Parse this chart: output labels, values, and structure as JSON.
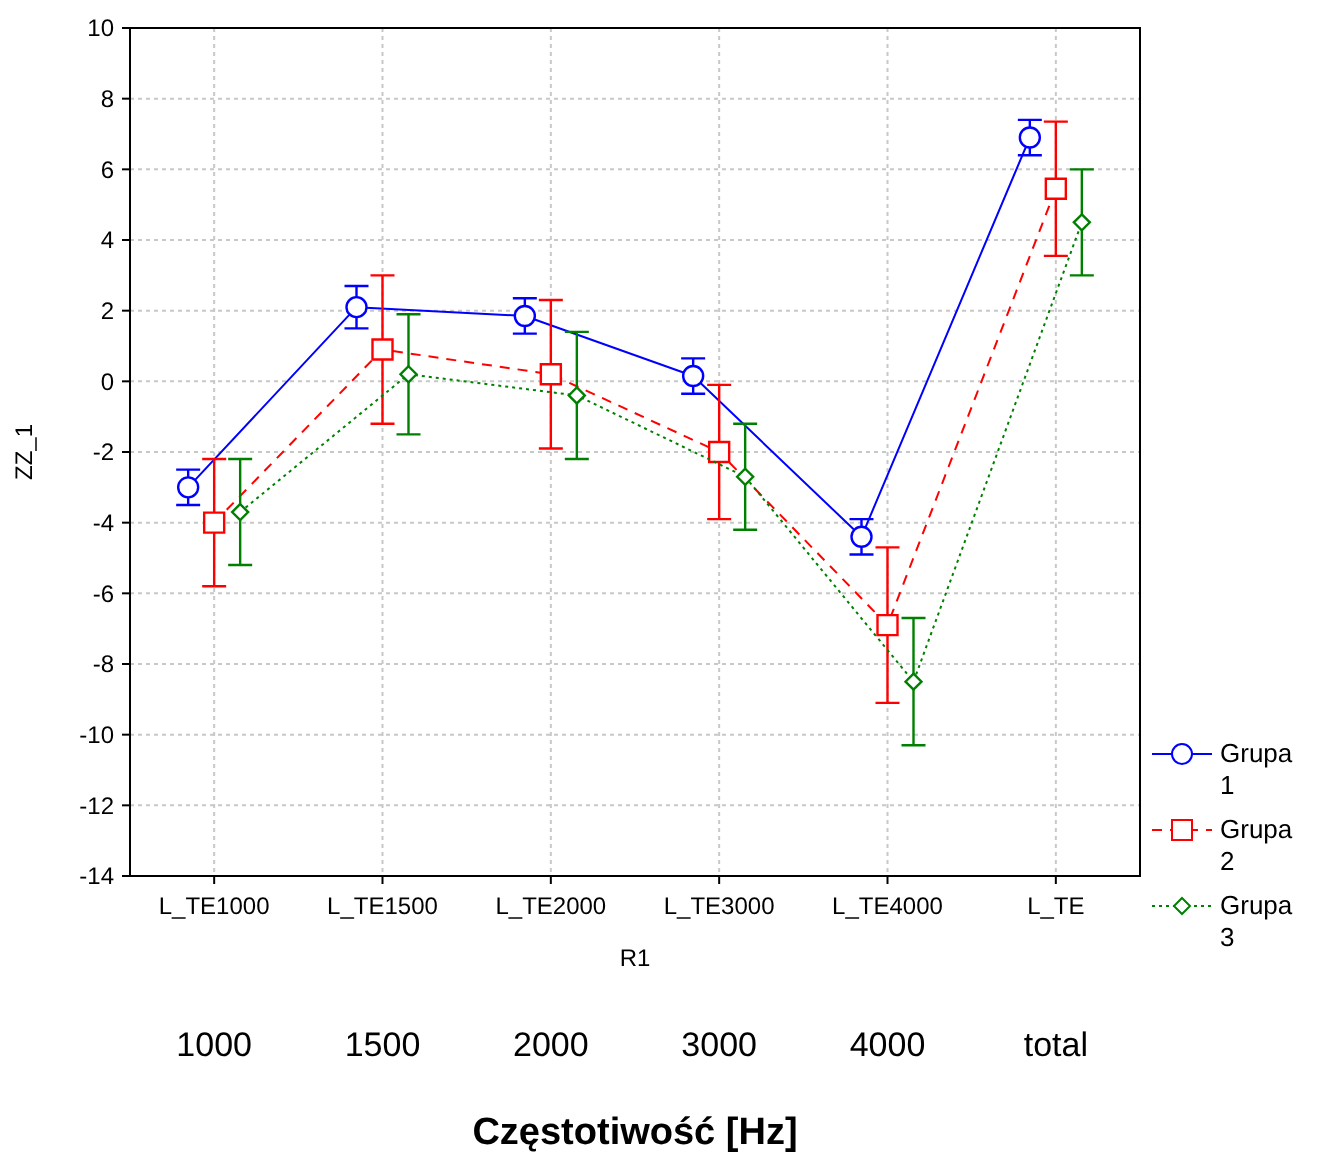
{
  "chart_data": {
    "type": "line",
    "xlabel": "R1",
    "ylabel": "ZZ_1",
    "categories": [
      "L_TE1000",
      "L_TE1500",
      "L_TE2000",
      "L_TE3000",
      "L_TE4000",
      "L_TE"
    ],
    "ylim": [
      -14,
      10
    ],
    "yticks": [
      -14,
      -12,
      -10,
      -8,
      -6,
      -4,
      -2,
      0,
      2,
      4,
      6,
      8,
      10
    ],
    "grid": true,
    "legend": "right",
    "series": [
      {
        "name": "Grupa 1",
        "color": "#0000ff",
        "marker": "circle",
        "line_style": "solid",
        "values": [
          -3.0,
          2.1,
          1.85,
          0.15,
          -4.4,
          6.9
        ],
        "errors": [
          0.5,
          0.6,
          0.5,
          0.5,
          0.5,
          0.5
        ]
      },
      {
        "name": "Grupa 2",
        "color": "#ff0000",
        "marker": "square",
        "line_style": "dashed",
        "values": [
          -4.0,
          0.9,
          0.2,
          -2.0,
          -6.9,
          5.45
        ],
        "errors": [
          1.8,
          2.1,
          2.1,
          1.9,
          2.2,
          1.9
        ]
      },
      {
        "name": "Grupa 3",
        "color": "#008000",
        "marker": "diamond",
        "line_style": "dotted",
        "values": [
          -3.7,
          0.2,
          -0.4,
          -2.7,
          -8.5,
          4.5
        ],
        "errors": [
          1.5,
          1.7,
          1.8,
          1.5,
          1.8,
          1.5
        ]
      }
    ],
    "annotations": [
      "1000",
      "1500",
      "2000",
      "3000",
      "4000",
      "total",
      "Częstotiwość [Hz]"
    ]
  }
}
